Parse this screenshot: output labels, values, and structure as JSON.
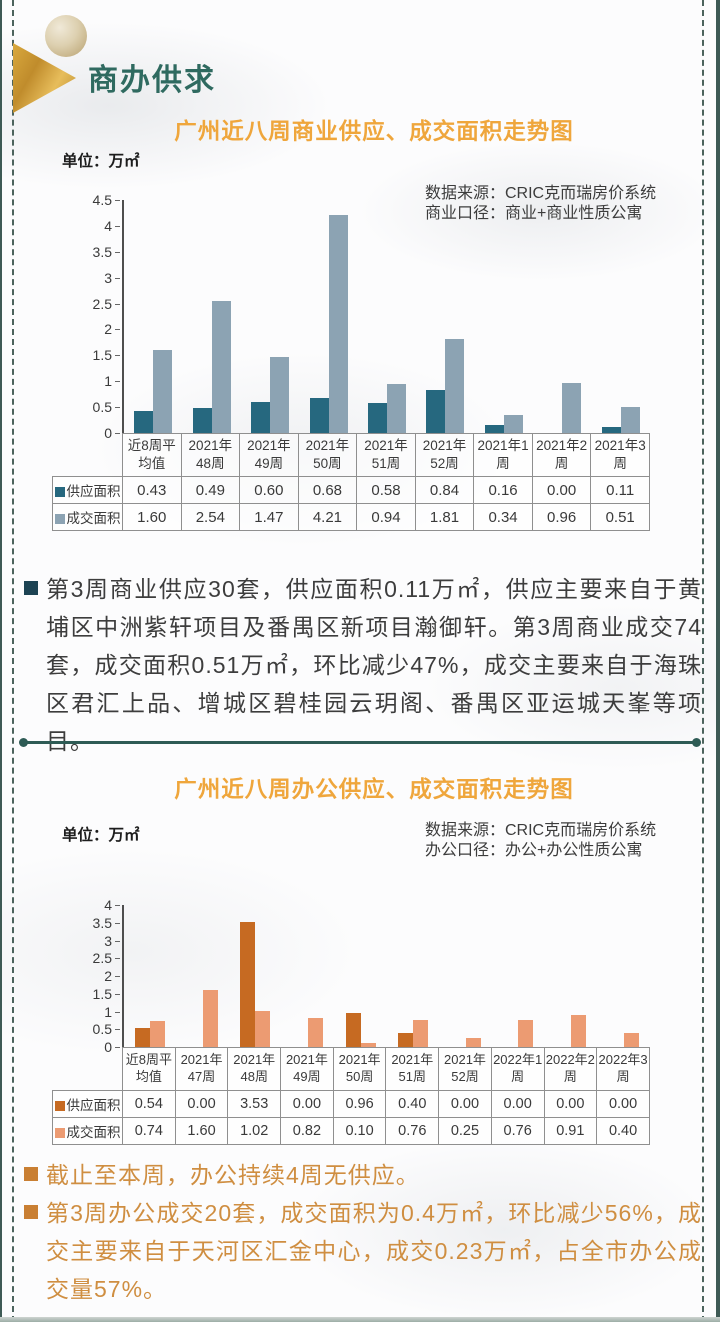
{
  "header": {
    "section_title": "商办供求"
  },
  "chart_data": [
    {
      "type": "bar",
      "title": "广州近八周商业供应、成交面积走势图",
      "unit": "单位：万㎡",
      "source_line1": "数据来源：CRIC克而瑞房价系统",
      "source_line2": "商业口径：商业+商业性质公寓",
      "categories": [
        "近8周平均值",
        "2021年48周",
        "2021年49周",
        "2021年50周",
        "2021年51周",
        "2021年52周",
        "2021年1周",
        "2021年2周",
        "2021年3周"
      ],
      "series": [
        {
          "key": "supply",
          "name": "供应面积",
          "color": "#26687f",
          "values": [
            0.43,
            0.49,
            0.6,
            0.68,
            0.58,
            0.84,
            0.16,
            0.0,
            0.11
          ]
        },
        {
          "key": "transaction",
          "name": "成交面积",
          "color": "#8ca3b3",
          "values": [
            1.6,
            2.54,
            1.47,
            4.21,
            0.94,
            1.81,
            0.34,
            0.96,
            0.51
          ]
        }
      ],
      "xlabel": "",
      "ylabel": "万㎡",
      "ylim": [
        0,
        4.5
      ],
      "ytick_step": 0.5,
      "grid": false,
      "legend_position": "table-left"
    },
    {
      "type": "bar",
      "title": "广州近八周办公供应、成交面积走势图",
      "unit": "单位：万㎡",
      "source_line1": "数据来源：CRIC克而瑞房价系统",
      "source_line2": "办公口径：办公+办公性质公寓",
      "categories": [
        "近8周平均值",
        "2021年47周",
        "2021年48周",
        "2021年49周",
        "2021年50周",
        "2021年51周",
        "2021年52周",
        "2022年1周",
        "2022年2周",
        "2022年3周"
      ],
      "series": [
        {
          "key": "supply",
          "name": "供应面积",
          "color": "#c66a22",
          "values": [
            0.54,
            0.0,
            3.53,
            0.0,
            0.96,
            0.4,
            0.0,
            0.0,
            0.0,
            0.0
          ]
        },
        {
          "key": "transaction",
          "name": "成交面积",
          "color": "#ec9b72",
          "values": [
            0.74,
            1.6,
            1.02,
            0.82,
            0.1,
            0.76,
            0.25,
            0.76,
            0.91,
            0.4
          ]
        }
      ],
      "xlabel": "",
      "ylabel": "万㎡",
      "ylim": [
        0,
        4
      ],
      "ytick_step": 0.5,
      "grid": false,
      "legend_position": "table-left"
    }
  ],
  "notes": {
    "commercial": [
      "第3周商业供应30套，供应面积0.11万㎡，供应主要来自于黄埔区中洲紫轩项目及番禺区新项目瀚御轩。第3周商业成交74套，成交面积0.51万㎡，环比减少47%，成交主要来自于海珠区君汇上品、增城区碧桂园云玥阁、番禺区亚运城天峯等项目。"
    ],
    "office": [
      "截止至本周，办公持续4周无供应。",
      "第3周办公成交20套，成交面积为0.4万㎡，环比减少56%，成交主要来自于天河区汇金中心，成交0.23万㎡，占全市办公成交量57%。"
    ]
  },
  "colors": {
    "accent_teal": "#2f6a60",
    "accent_orange": "#efa63c",
    "note_orange": "#cf8e41",
    "frame_teal": "#3e5a55"
  }
}
